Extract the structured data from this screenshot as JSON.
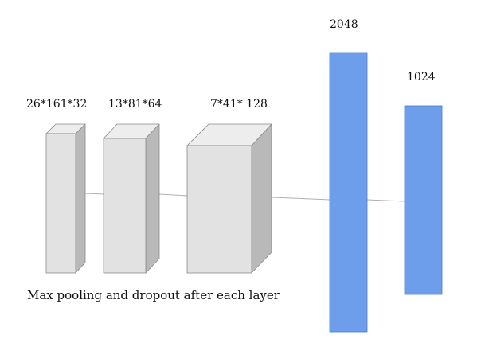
{
  "layers": [
    {
      "id": "conv1",
      "label": "26*161*32"
    },
    {
      "id": "conv2",
      "label": "13*81*64"
    },
    {
      "id": "conv3",
      "label": "7*41* 128"
    },
    {
      "id": "fc1",
      "label": "2048"
    },
    {
      "id": "fc2",
      "label": "1024"
    }
  ],
  "caption": "Max pooling and dropout after each layer",
  "colors": {
    "conv_front": "#e2e2e2",
    "conv_top": "#ededed",
    "conv_side": "#b9b9b9",
    "conv_edge": "#8a8a8a",
    "dense_fill": "#6d9eeb",
    "dense_edge": "#4a7bc8",
    "connector": "#b0b0b0"
  }
}
